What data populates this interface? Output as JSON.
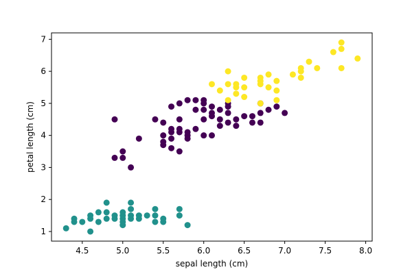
{
  "chart_data": {
    "type": "scatter",
    "title": "",
    "xlabel": "sepal length (cm)",
    "ylabel": "petal length (cm)",
    "xlim": [
      4.12,
      8.08
    ],
    "ylim": [
      0.7,
      7.2
    ],
    "xticks": [
      4.5,
      5.0,
      5.5,
      6.0,
      6.5,
      7.0,
      7.5,
      8.0
    ],
    "xtick_labels": [
      "4.5",
      "5.0",
      "5.5",
      "6.0",
      "6.5",
      "7.0",
      "7.5",
      "8.0"
    ],
    "yticks": [
      1,
      2,
      3,
      4,
      5,
      6,
      7
    ],
    "ytick_labels": [
      "1",
      "2",
      "3",
      "4",
      "5",
      "6",
      "7"
    ],
    "grid": false,
    "legend": "none",
    "series": [
      {
        "color": "#21918c",
        "points": [
          [
            4.3,
            1.1
          ],
          [
            4.4,
            1.3
          ],
          [
            4.4,
            1.4
          ],
          [
            4.5,
            1.3
          ],
          [
            4.6,
            1.0
          ],
          [
            4.6,
            1.4
          ],
          [
            4.6,
            1.5
          ],
          [
            4.7,
            1.3
          ],
          [
            4.7,
            1.6
          ],
          [
            4.8,
            1.4
          ],
          [
            4.8,
            1.6
          ],
          [
            4.8,
            1.9
          ],
          [
            4.9,
            1.4
          ],
          [
            4.9,
            1.5
          ],
          [
            5.0,
            1.2
          ],
          [
            5.0,
            1.3
          ],
          [
            5.0,
            1.4
          ],
          [
            5.0,
            1.5
          ],
          [
            5.0,
            1.6
          ],
          [
            5.1,
            1.4
          ],
          [
            5.1,
            1.5
          ],
          [
            5.1,
            1.7
          ],
          [
            5.1,
            1.9
          ],
          [
            5.2,
            1.4
          ],
          [
            5.2,
            1.5
          ],
          [
            5.3,
            1.5
          ],
          [
            5.4,
            1.3
          ],
          [
            5.4,
            1.5
          ],
          [
            5.4,
            1.7
          ],
          [
            5.5,
            1.3
          ],
          [
            5.5,
            1.4
          ],
          [
            5.7,
            1.5
          ],
          [
            5.7,
            1.7
          ],
          [
            5.8,
            1.2
          ]
        ]
      },
      {
        "color": "#440154",
        "points": [
          [
            4.9,
            4.5
          ],
          [
            4.9,
            3.3
          ],
          [
            5.0,
            3.3
          ],
          [
            5.0,
            3.5
          ],
          [
            5.1,
            3.0
          ],
          [
            5.2,
            3.9
          ],
          [
            5.4,
            4.5
          ],
          [
            5.5,
            3.7
          ],
          [
            5.5,
            3.8
          ],
          [
            5.5,
            4.0
          ],
          [
            5.5,
            4.4
          ],
          [
            5.6,
            3.6
          ],
          [
            5.6,
            3.9
          ],
          [
            5.6,
            4.1
          ],
          [
            5.6,
            4.2
          ],
          [
            5.6,
            4.9
          ],
          [
            5.7,
            3.5
          ],
          [
            5.7,
            4.1
          ],
          [
            5.7,
            4.2
          ],
          [
            5.7,
            4.5
          ],
          [
            5.7,
            5.0
          ],
          [
            5.8,
            3.9
          ],
          [
            5.8,
            4.0
          ],
          [
            5.8,
            4.1
          ],
          [
            5.8,
            5.1
          ],
          [
            5.9,
            4.2
          ],
          [
            5.9,
            4.8
          ],
          [
            5.9,
            5.1
          ],
          [
            6.0,
            4.0
          ],
          [
            6.0,
            4.5
          ],
          [
            6.0,
            4.8
          ],
          [
            6.0,
            5.0
          ],
          [
            6.0,
            5.1
          ],
          [
            6.1,
            4.0
          ],
          [
            6.1,
            4.6
          ],
          [
            6.1,
            4.7
          ],
          [
            6.1,
            4.9
          ],
          [
            6.2,
            4.3
          ],
          [
            6.2,
            4.5
          ],
          [
            6.2,
            4.8
          ],
          [
            6.3,
            4.4
          ],
          [
            6.3,
            4.7
          ],
          [
            6.3,
            4.9
          ],
          [
            6.3,
            5.0
          ],
          [
            6.4,
            4.3
          ],
          [
            6.4,
            4.5
          ],
          [
            6.5,
            4.6
          ],
          [
            6.6,
            4.4
          ],
          [
            6.6,
            4.6
          ],
          [
            6.7,
            4.4
          ],
          [
            6.7,
            4.7
          ],
          [
            6.7,
            5.0
          ],
          [
            6.8,
            4.8
          ],
          [
            6.9,
            4.9
          ],
          [
            7.0,
            4.7
          ]
        ]
      },
      {
        "color": "#fde725",
        "points": [
          [
            6.1,
            5.6
          ],
          [
            6.2,
            5.4
          ],
          [
            6.3,
            5.6
          ],
          [
            6.3,
            6.0
          ],
          [
            6.3,
            5.1
          ],
          [
            6.4,
            5.3
          ],
          [
            6.4,
            5.5
          ],
          [
            6.4,
            5.6
          ],
          [
            6.5,
            5.2
          ],
          [
            6.5,
            5.5
          ],
          [
            6.5,
            5.8
          ],
          [
            6.7,
            5.0
          ],
          [
            6.7,
            5.6
          ],
          [
            6.7,
            5.7
          ],
          [
            6.7,
            5.8
          ],
          [
            6.8,
            5.5
          ],
          [
            6.8,
            5.9
          ],
          [
            6.9,
            5.1
          ],
          [
            6.9,
            5.4
          ],
          [
            6.9,
            5.7
          ],
          [
            7.1,
            5.9
          ],
          [
            7.2,
            5.8
          ],
          [
            7.2,
            6.0
          ],
          [
            7.2,
            6.1
          ],
          [
            7.3,
            6.3
          ],
          [
            7.4,
            6.1
          ],
          [
            7.6,
            6.6
          ],
          [
            7.7,
            6.1
          ],
          [
            7.7,
            6.7
          ],
          [
            7.7,
            6.9
          ],
          [
            7.9,
            6.4
          ]
        ]
      }
    ]
  }
}
